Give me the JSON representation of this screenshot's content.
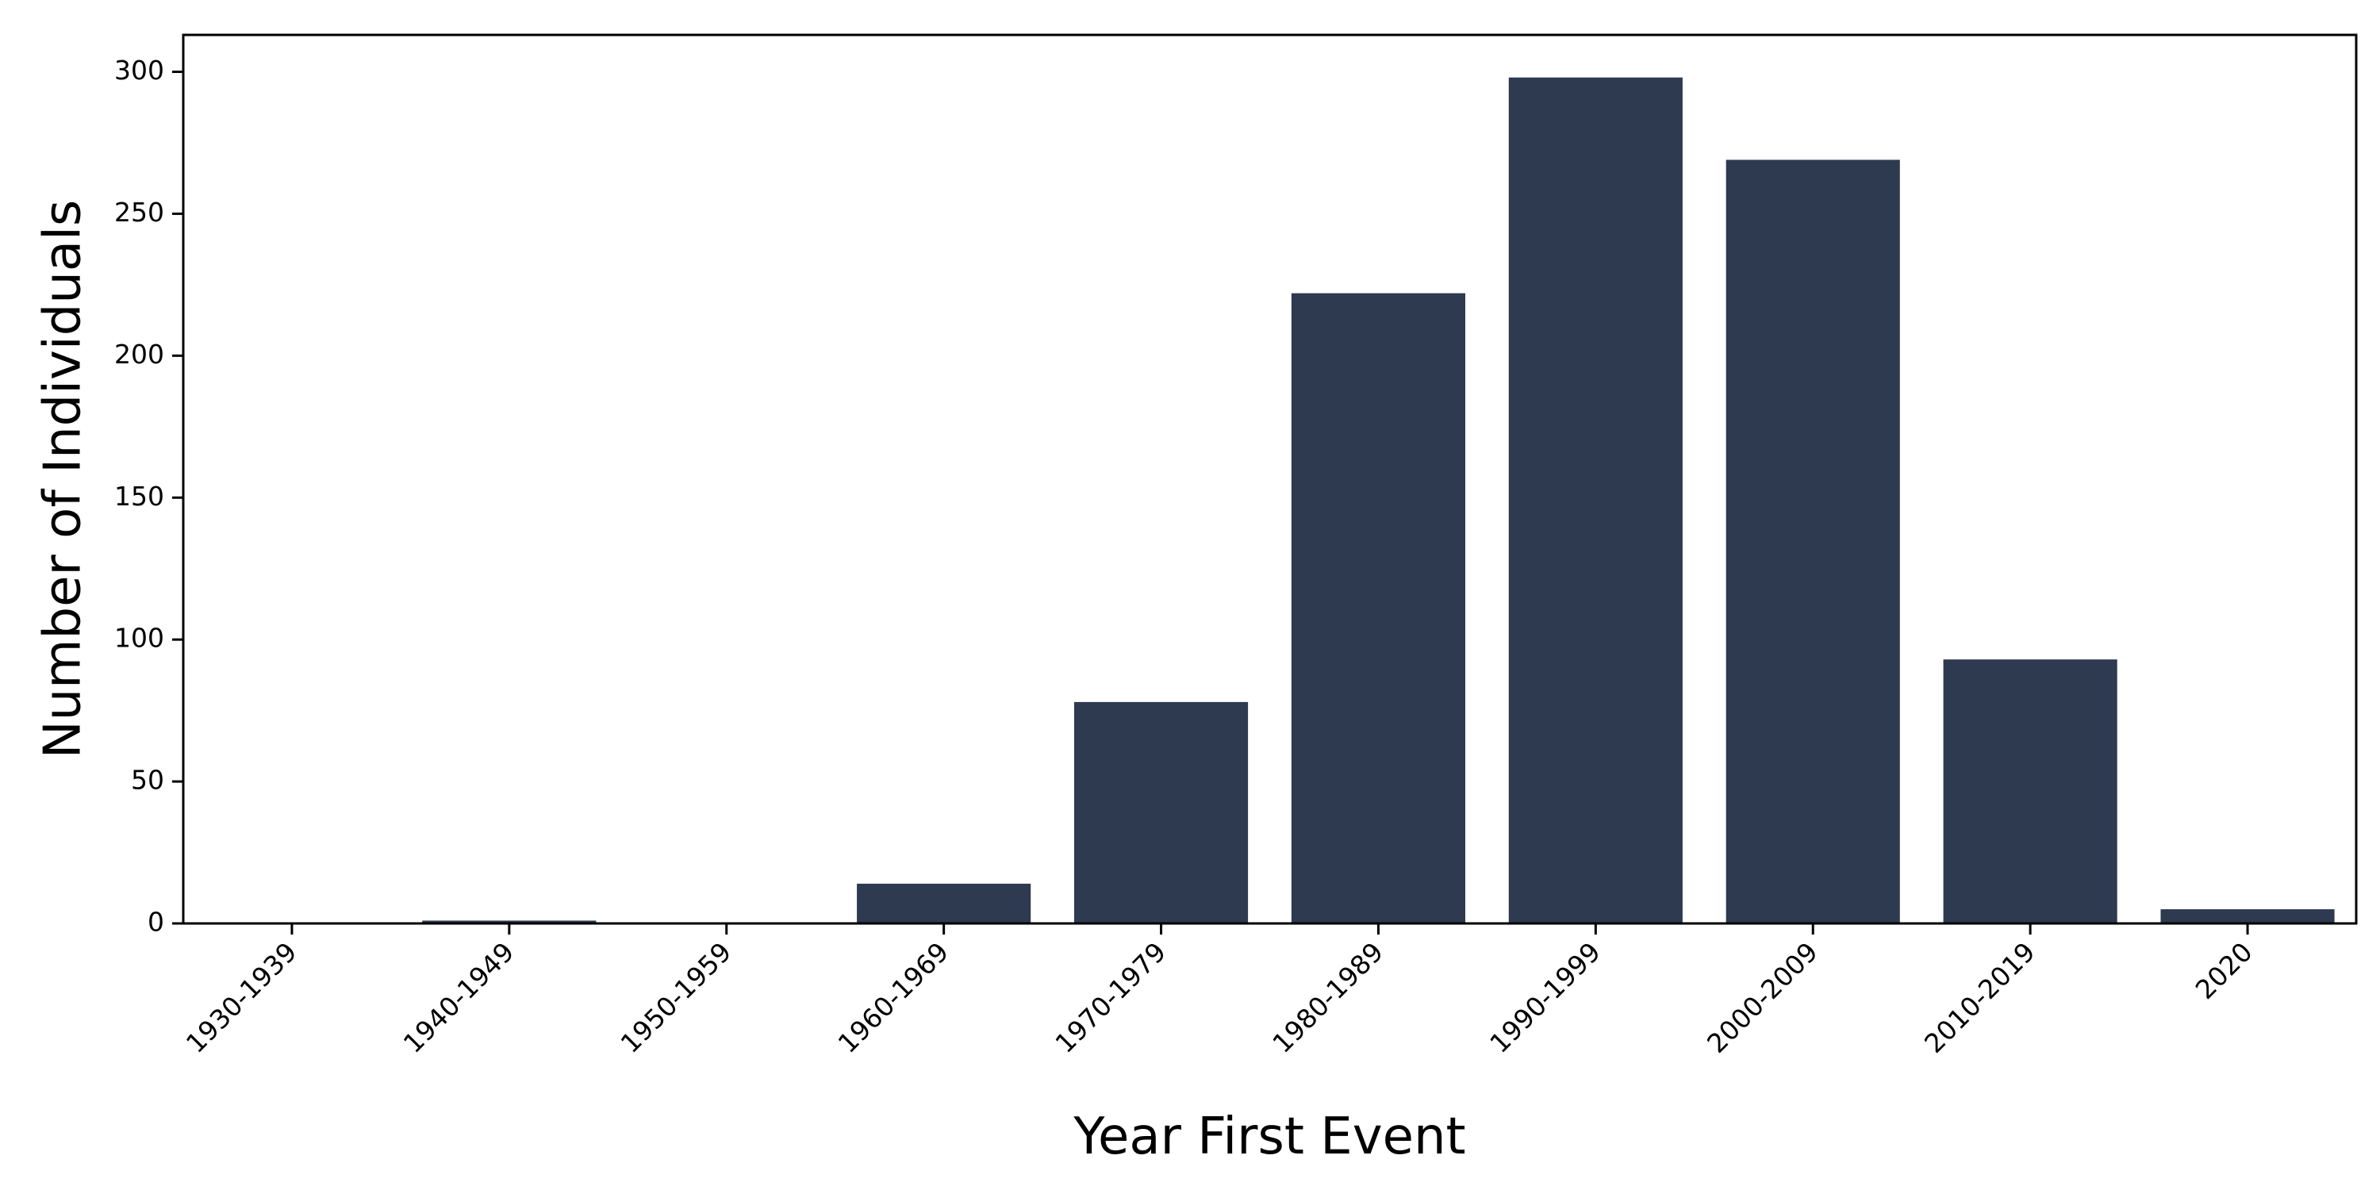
{
  "chart_data": {
    "type": "bar",
    "title": "",
    "xlabel": "Year First Event",
    "ylabel": "Number of Individuals",
    "categories": [
      "1930-1939",
      "1940-1949",
      "1950-1959",
      "1960-1969",
      "1970-1979",
      "1980-1989",
      "1990-1999",
      "2000-2009",
      "2010-2019",
      "2020"
    ],
    "values": [
      0,
      1,
      0,
      14,
      78,
      222,
      298,
      269,
      93,
      5
    ],
    "ylim": [
      0,
      313
    ],
    "yticks": [
      0,
      50,
      100,
      150,
      200,
      250,
      300
    ],
    "grid": false,
    "legend": "none",
    "bar_color": "#2d3a50"
  }
}
